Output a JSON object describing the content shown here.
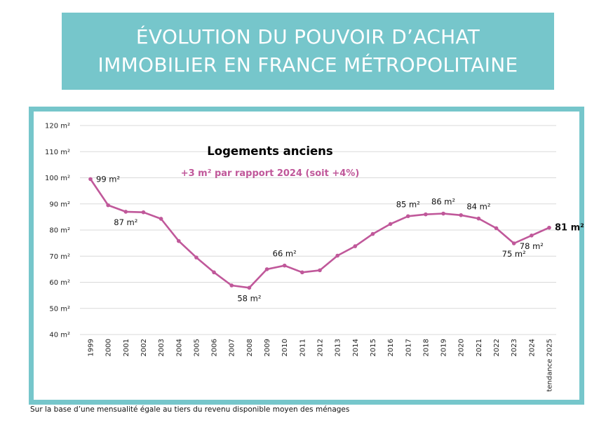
{
  "title": {
    "line1": "ÉVOLUTION DU POUVOIR D’ACHAT",
    "line2": "IMMOBILIER EN FRANCE MÉTROPOLITAINE"
  },
  "footnote": "Sur la base d’une mensualité égale au tiers du revenu disponible moyen des ménages",
  "colors": {
    "banner": "#76c6cb",
    "series": "#c0589a",
    "subtitle": "#c0589a",
    "grid": "#d9d9d9"
  },
  "chart_data": {
    "type": "line",
    "title": "Logements anciens",
    "subtitle": "+3 m² par rapport 2024 (soit +4%)",
    "ylim": [
      40,
      120
    ],
    "yticks": [
      40,
      50,
      60,
      70,
      80,
      90,
      100,
      110,
      120
    ],
    "ytick_labels": [
      "40 m²",
      "50 m²",
      "60 m²",
      "70 m²",
      "80 m²",
      "90 m²",
      "100 m²",
      "110 m²",
      "120 m²"
    ],
    "grid": true,
    "categories": [
      "1999",
      "2000",
      "2001",
      "2002",
      "2003",
      "2004",
      "2005",
      "2006",
      "2007",
      "2008",
      "2009",
      "2010",
      "2011",
      "2012",
      "2013",
      "2014",
      "2015",
      "2016",
      "2017",
      "2018",
      "2019",
      "2020",
      "2021",
      "2022",
      "2023",
      "2024",
      "tendance 2025"
    ],
    "series": [
      {
        "name": "Logements anciens",
        "values": [
          99.5,
          89.5,
          87,
          86.8,
          84.3,
          75.8,
          69.5,
          63.8,
          58.8,
          57.9,
          65,
          66.4,
          63.8,
          64.6,
          70.2,
          73.8,
          78.5,
          82.3,
          85.3,
          86,
          86.3,
          85.7,
          84.4,
          80.7,
          74.9,
          77.9,
          80.9
        ]
      }
    ],
    "data_labels": [
      {
        "index": 0,
        "text": "99 m²",
        "position": "right"
      },
      {
        "index": 2,
        "text": "87 m²",
        "position": "below"
      },
      {
        "index": 9,
        "text": "58 m²",
        "position": "below"
      },
      {
        "index": 11,
        "text": "66 m²",
        "position": "above"
      },
      {
        "index": 18,
        "text": "85 m²",
        "position": "above"
      },
      {
        "index": 20,
        "text": "86 m²",
        "position": "above"
      },
      {
        "index": 22,
        "text": "84 m²",
        "position": "above"
      },
      {
        "index": 24,
        "text": "75 m²",
        "position": "below"
      },
      {
        "index": 25,
        "text": "78 m²",
        "position": "below"
      },
      {
        "index": 26,
        "text": "81 m²",
        "position": "right",
        "bold": true
      }
    ]
  }
}
